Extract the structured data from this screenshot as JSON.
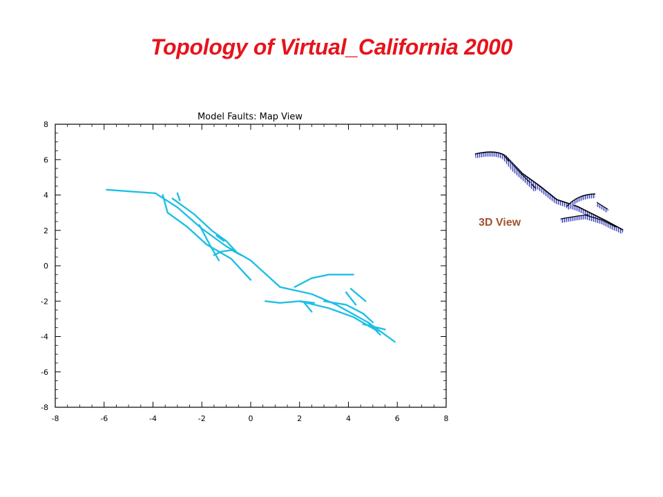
{
  "slide": {
    "title": "Topology of Virtual_California 2000",
    "view_3d_label": "3D View"
  },
  "colors": {
    "title": "#e8121b",
    "fault_trace": "#1ebfe6",
    "view_3d_label": "#a0522d",
    "fault_plane_fill": "#7a84e6",
    "fault_plane_edge": "#000000"
  },
  "chart_data": {
    "type": "line",
    "title": "Model Faults:  Map View",
    "xlabel": "",
    "ylabel": "",
    "xlim": [
      -8,
      8
    ],
    "ylim": [
      -8,
      8
    ],
    "xticks": [
      -8,
      -6,
      -4,
      -2,
      0,
      2,
      4,
      6,
      8
    ],
    "yticks": [
      -8,
      -6,
      -4,
      -2,
      0,
      2,
      4,
      6,
      8
    ],
    "grid": false,
    "series": [
      {
        "values": [
          [
            -5.9,
            4.3
          ],
          [
            -4.9,
            4.2
          ],
          [
            -3.9,
            4.1
          ],
          [
            -3.0,
            3.3
          ],
          [
            -2.0,
            2.1
          ],
          [
            -1.0,
            1.1
          ],
          [
            0.0,
            0.3
          ],
          [
            1.2,
            -1.2
          ],
          [
            2.5,
            -1.6
          ],
          [
            3.5,
            -2.2
          ],
          [
            4.8,
            -3.2
          ],
          [
            5.9,
            -4.3
          ]
        ]
      },
      {
        "values": [
          [
            -3.6,
            4.0
          ],
          [
            -3.4,
            3.0
          ],
          [
            -2.6,
            2.2
          ],
          [
            -1.8,
            1.2
          ],
          [
            -0.8,
            0.4
          ],
          [
            0.0,
            -0.8
          ]
        ]
      },
      {
        "values": [
          [
            -3.2,
            3.8
          ],
          [
            -2.3,
            2.9
          ],
          [
            -1.6,
            2.0
          ],
          [
            -1.0,
            1.4
          ],
          [
            -0.6,
            0.8
          ]
        ]
      },
      {
        "values": [
          [
            -3.0,
            4.1
          ],
          [
            -2.9,
            3.7
          ]
        ]
      },
      {
        "values": [
          [
            -2.1,
            2.3
          ],
          [
            -1.6,
            1.0
          ],
          [
            -1.3,
            0.3
          ]
        ]
      },
      {
        "values": [
          [
            -1.4,
            1.7
          ],
          [
            -1.1,
            1.4
          ]
        ]
      },
      {
        "values": [
          [
            -0.8,
            0.9
          ],
          [
            -0.4,
            0.6
          ]
        ]
      },
      {
        "values": [
          [
            -1.5,
            0.6
          ],
          [
            -1.2,
            0.8
          ],
          [
            -0.7,
            0.9
          ]
        ]
      },
      {
        "values": [
          [
            1.8,
            -1.2
          ],
          [
            2.5,
            -0.7
          ],
          [
            3.2,
            -0.5
          ],
          [
            4.2,
            -0.5
          ]
        ]
      },
      {
        "values": [
          [
            0.6,
            -2.0
          ],
          [
            1.2,
            -2.1
          ],
          [
            2.0,
            -2.0
          ],
          [
            2.6,
            -2.1
          ]
        ]
      },
      {
        "values": [
          [
            2.0,
            -2.0
          ],
          [
            3.2,
            -2.4
          ],
          [
            4.2,
            -2.9
          ],
          [
            5.2,
            -3.7
          ]
        ]
      },
      {
        "values": [
          [
            2.2,
            -2.1
          ],
          [
            2.5,
            -2.6
          ]
        ]
      },
      {
        "values": [
          [
            3.0,
            -2.0
          ],
          [
            3.9,
            -2.2
          ],
          [
            4.6,
            -2.7
          ],
          [
            5.0,
            -3.2
          ]
        ]
      },
      {
        "values": [
          [
            3.9,
            -1.5
          ],
          [
            4.3,
            -2.2
          ]
        ]
      },
      {
        "values": [
          [
            4.1,
            -1.3
          ],
          [
            4.7,
            -2.0
          ]
        ]
      },
      {
        "values": [
          [
            4.8,
            -3.2
          ],
          [
            5.3,
            -3.9
          ]
        ]
      },
      {
        "values": [
          [
            4.6,
            -3.3
          ],
          [
            5.5,
            -3.6
          ]
        ]
      }
    ]
  }
}
